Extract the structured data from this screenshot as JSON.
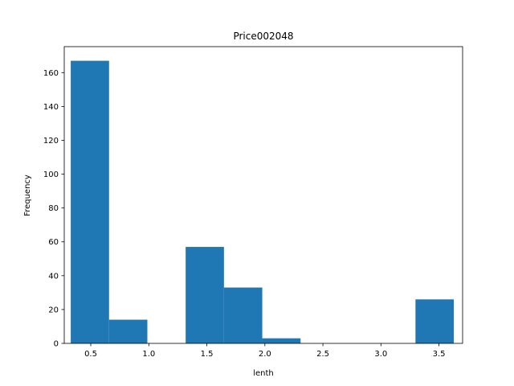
{
  "chart_data": {
    "type": "bar",
    "title": "Price002048",
    "xlabel": "lenth",
    "ylabel": "Frequency",
    "xlim": [
      0.2715,
      3.7035
    ],
    "ylim": [
      0,
      175.35
    ],
    "xticks": [
      0.5,
      1.0,
      1.5,
      2.0,
      2.5,
      3.0,
      3.5
    ],
    "xtick_labels": [
      "0.5",
      "1.0",
      "1.5",
      "2.0",
      "2.5",
      "3.0",
      "3.5"
    ],
    "yticks": [
      0,
      20,
      40,
      60,
      80,
      100,
      120,
      140,
      160
    ],
    "ytick_labels": [
      "0",
      "20",
      "40",
      "60",
      "80",
      "100",
      "120",
      "140",
      "160"
    ],
    "bin_edges": [
      0.3275,
      0.6575,
      0.9875,
      1.3175,
      1.6475,
      1.9775,
      2.3075,
      2.6375,
      2.9675,
      3.2975,
      3.6275
    ],
    "values": [
      167,
      14,
      0,
      57,
      33,
      3,
      0,
      0,
      0,
      26
    ],
    "bar_color": "#1f77b4",
    "grid": false,
    "legend": "none"
  }
}
